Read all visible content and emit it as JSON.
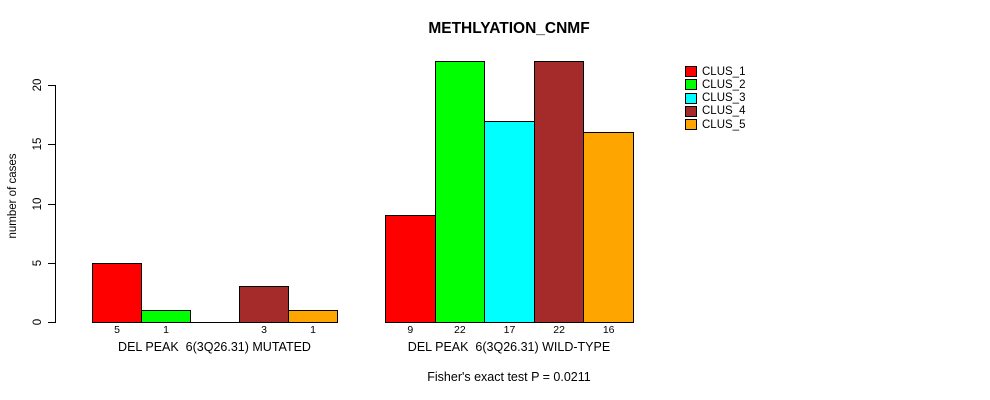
{
  "title": "METHLYATION_CNMF",
  "footer": "Fisher's exact test P = 0.0211",
  "y_axis": {
    "label": "number of cases",
    "ticks": [
      0,
      5,
      10,
      15,
      20
    ]
  },
  "chart_data": {
    "type": "bar",
    "title": "METHLYATION_CNMF",
    "xlabel": "",
    "ylabel": "number of cases",
    "ylim": [
      0,
      23.7
    ],
    "yticks": [
      0,
      5,
      10,
      15,
      20
    ],
    "grid": false,
    "legend_position": "right",
    "value_labels": true,
    "annotation": "Fisher's exact test P = 0.0211",
    "categories": [
      "DEL PEAK  6(3Q26.31) MUTATED",
      "DEL PEAK  6(3Q26.31) WILD-TYPE"
    ],
    "series": [
      {
        "name": "CLUS_1",
        "color": "#ff0000",
        "values": [
          5,
          9
        ]
      },
      {
        "name": "CLUS_2",
        "color": "#00ff00",
        "values": [
          1,
          22
        ]
      },
      {
        "name": "CLUS_3",
        "color": "#00ffff",
        "values": [
          0,
          17
        ]
      },
      {
        "name": "CLUS_4",
        "color": "#a52a2a",
        "values": [
          3,
          22
        ]
      },
      {
        "name": "CLUS_5",
        "color": "#ffa500",
        "values": [
          1,
          16
        ]
      }
    ]
  },
  "colors": {
    "background": "#ffffff",
    "axis": "#000000",
    "text": "#000000"
  }
}
